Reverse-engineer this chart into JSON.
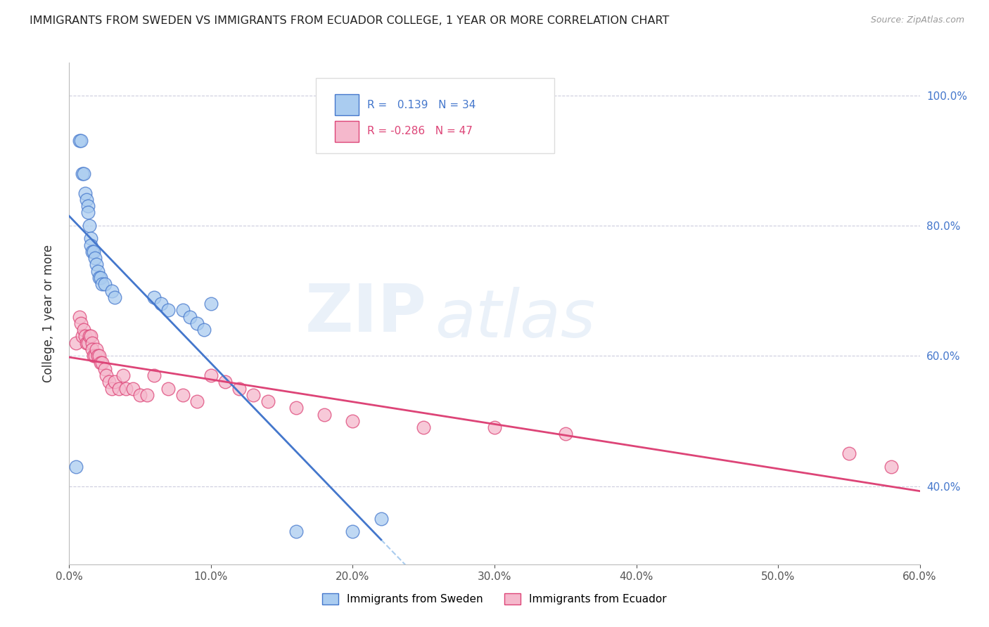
{
  "title": "IMMIGRANTS FROM SWEDEN VS IMMIGRANTS FROM ECUADOR COLLEGE, 1 YEAR OR MORE CORRELATION CHART",
  "source": "Source: ZipAtlas.com",
  "ylabel": "College, 1 year or more",
  "xlim": [
    0.0,
    0.6
  ],
  "ylim": [
    0.28,
    1.05
  ],
  "sweden_R": 0.139,
  "sweden_N": 34,
  "ecuador_R": -0.286,
  "ecuador_N": 47,
  "sweden_color": "#aaccf0",
  "ecuador_color": "#f5b8cc",
  "sweden_line_color": "#4477cc",
  "ecuador_line_color": "#dd4477",
  "dashed_line_color": "#aaccee",
  "legend_sweden": "Immigrants from Sweden",
  "legend_ecuador": "Immigrants from Ecuador",
  "sweden_x": [
    0.005,
    0.007,
    0.008,
    0.009,
    0.01,
    0.011,
    0.012,
    0.013,
    0.013,
    0.014,
    0.015,
    0.015,
    0.016,
    0.017,
    0.018,
    0.019,
    0.02,
    0.021,
    0.022,
    0.023,
    0.025,
    0.03,
    0.032,
    0.06,
    0.065,
    0.07,
    0.08,
    0.085,
    0.09,
    0.095,
    0.1,
    0.16,
    0.2,
    0.22
  ],
  "sweden_y": [
    0.43,
    0.93,
    0.93,
    0.88,
    0.88,
    0.85,
    0.84,
    0.83,
    0.82,
    0.8,
    0.78,
    0.77,
    0.76,
    0.76,
    0.75,
    0.74,
    0.73,
    0.72,
    0.72,
    0.71,
    0.71,
    0.7,
    0.69,
    0.69,
    0.68,
    0.67,
    0.67,
    0.66,
    0.65,
    0.64,
    0.68,
    0.33,
    0.33,
    0.35
  ],
  "ecuador_x": [
    0.005,
    0.007,
    0.008,
    0.009,
    0.01,
    0.011,
    0.012,
    0.013,
    0.014,
    0.015,
    0.016,
    0.016,
    0.017,
    0.018,
    0.019,
    0.02,
    0.021,
    0.022,
    0.023,
    0.025,
    0.026,
    0.028,
    0.03,
    0.032,
    0.035,
    0.038,
    0.04,
    0.045,
    0.05,
    0.055,
    0.06,
    0.07,
    0.08,
    0.09,
    0.1,
    0.11,
    0.12,
    0.13,
    0.14,
    0.16,
    0.18,
    0.2,
    0.25,
    0.3,
    0.35,
    0.55,
    0.58
  ],
  "ecuador_y": [
    0.62,
    0.66,
    0.65,
    0.63,
    0.64,
    0.63,
    0.62,
    0.62,
    0.63,
    0.63,
    0.62,
    0.61,
    0.6,
    0.6,
    0.61,
    0.6,
    0.6,
    0.59,
    0.59,
    0.58,
    0.57,
    0.56,
    0.55,
    0.56,
    0.55,
    0.57,
    0.55,
    0.55,
    0.54,
    0.54,
    0.57,
    0.55,
    0.54,
    0.53,
    0.57,
    0.56,
    0.55,
    0.54,
    0.53,
    0.52,
    0.51,
    0.5,
    0.49,
    0.49,
    0.48,
    0.45,
    0.43
  ],
  "watermark_zip": "ZIP",
  "watermark_atlas": "atlas",
  "background_color": "#ffffff",
  "grid_color": "#ccccdd"
}
